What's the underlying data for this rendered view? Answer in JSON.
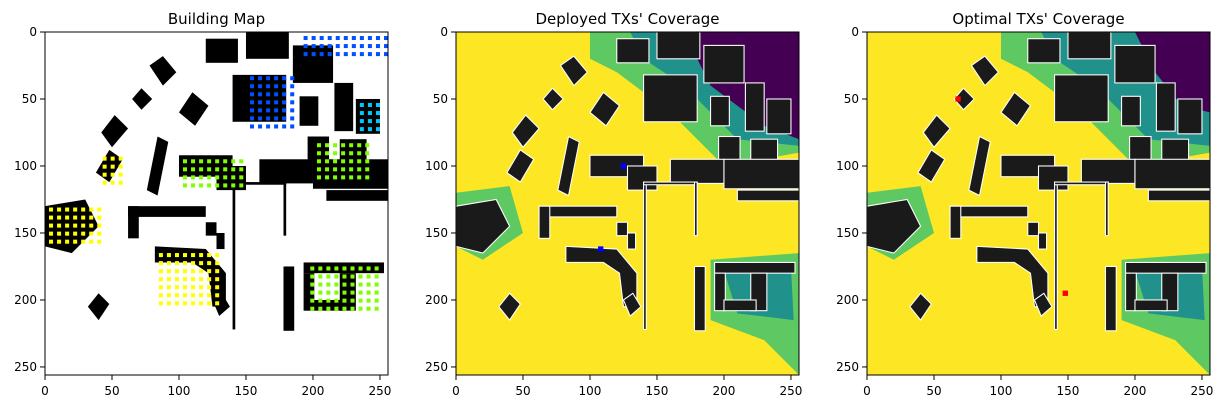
{
  "chart_data": [
    {
      "type": "heatmap",
      "title": "Building Map",
      "xlim": [
        0,
        256
      ],
      "ylim": [
        256,
        0
      ],
      "xticks": [
        0,
        50,
        100,
        150,
        200,
        250
      ],
      "yticks": [
        0,
        50,
        100,
        150,
        200,
        250
      ],
      "colors": {
        "background": "#ffffff",
        "building": "#000000",
        "tx_palette": [
          "#ffff00",
          "#7fff00",
          "#00c8ff",
          "#0050ff"
        ]
      }
    },
    {
      "type": "heatmap",
      "title": "Deployed TXs' Coverage",
      "xlim": [
        0,
        256
      ],
      "ylim": [
        256,
        0
      ],
      "xticks": [
        0,
        50,
        100,
        150,
        200,
        250
      ],
      "yticks": [
        0,
        50,
        100,
        150,
        200,
        250
      ],
      "colormap": "viridis",
      "colors": {
        "covered": "#fde725",
        "weak": "#5ec962",
        "weaker": "#21918c",
        "uncovered": "#440154",
        "building": "#1a1a1a",
        "tx_marker": "#0000ff"
      }
    },
    {
      "type": "heatmap",
      "title": "Optimal TXs' Coverage",
      "xlim": [
        0,
        256
      ],
      "ylim": [
        256,
        0
      ],
      "xticks": [
        0,
        50,
        100,
        150,
        200,
        250
      ],
      "yticks": [
        0,
        50,
        100,
        150,
        200,
        250
      ],
      "colormap": "viridis",
      "colors": {
        "covered": "#fde725",
        "weak": "#5ec962",
        "weaker": "#21918c",
        "uncovered": "#440154",
        "building": "#1a1a1a",
        "tx_marker": "#ff0000"
      }
    }
  ]
}
